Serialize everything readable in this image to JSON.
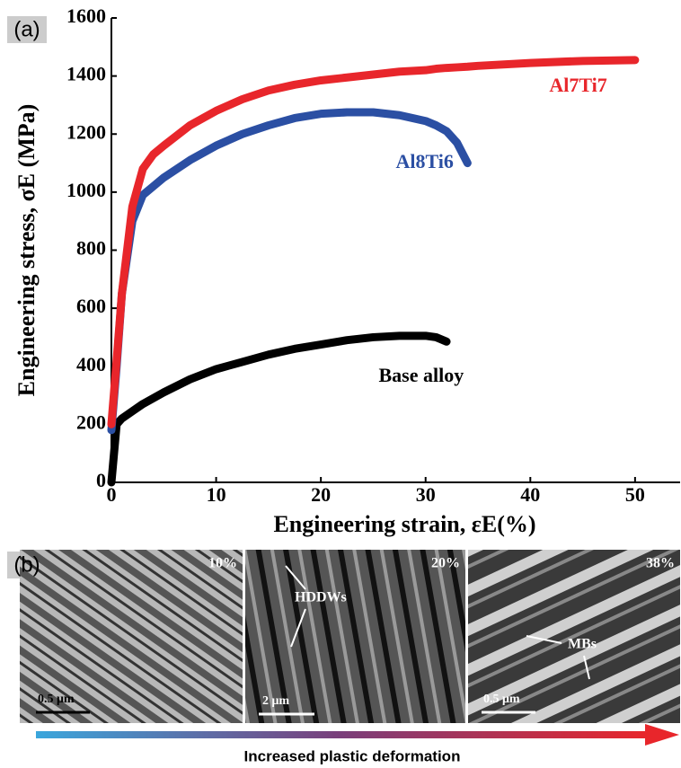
{
  "chart_data": {
    "type": "line",
    "x_label": "Engineering strain, εE(%)",
    "y_label": "Engineering stress, σE (MPa)",
    "x": [
      0,
      0.5,
      1,
      2,
      3,
      4,
      5,
      7.5,
      10,
      12.5,
      15,
      17.5,
      20,
      22.5,
      25,
      27.5,
      30,
      31,
      32,
      33,
      34,
      35,
      40,
      45,
      50
    ],
    "series": [
      {
        "name": "Base alloy",
        "color": "#000000",
        "values": [
          0,
          200,
          220,
          245,
          270,
          290,
          310,
          355,
          390,
          415,
          440,
          460,
          475,
          490,
          500,
          505,
          505,
          500,
          485,
          null,
          null,
          null,
          null,
          null,
          null
        ]
      },
      {
        "name": "Al8Ti6",
        "color": "#2b4fa3",
        "values": [
          180,
          400,
          650,
          900,
          990,
          1020,
          1050,
          1110,
          1160,
          1200,
          1230,
          1255,
          1270,
          1275,
          1275,
          1265,
          1245,
          1230,
          1210,
          1170,
          1100,
          null,
          null,
          null,
          null
        ]
      },
      {
        "name": "Al7Ti7",
        "color": "#e8262b",
        "values": [
          200,
          420,
          650,
          950,
          1080,
          1130,
          1160,
          1230,
          1280,
          1320,
          1350,
          1370,
          1385,
          1395,
          1405,
          1415,
          1420,
          1425,
          1428,
          1430,
          1432,
          1435,
          1445,
          1452,
          1455
        ]
      }
    ],
    "xlim": [
      0,
      54.3
    ],
    "xticks": [
      0,
      10,
      20,
      30,
      40,
      50
    ],
    "ylim": [
      0,
      1600
    ],
    "yticks": [
      0,
      200,
      400,
      600,
      800,
      1000,
      1200,
      1400,
      1600
    ]
  },
  "panel_labels": [
    "(a)",
    "(b)"
  ],
  "micrographs": [
    {
      "strain": "10%",
      "scale_bar": "0.5 μm"
    },
    {
      "strain": "20%",
      "annotation": "HDDWs",
      "scale_bar": "2 μm"
    },
    {
      "strain": "38%",
      "annotation": "MBs",
      "scale_bar": "0.5 μm"
    }
  ],
  "arrow_label": "Increased plastic deformation"
}
